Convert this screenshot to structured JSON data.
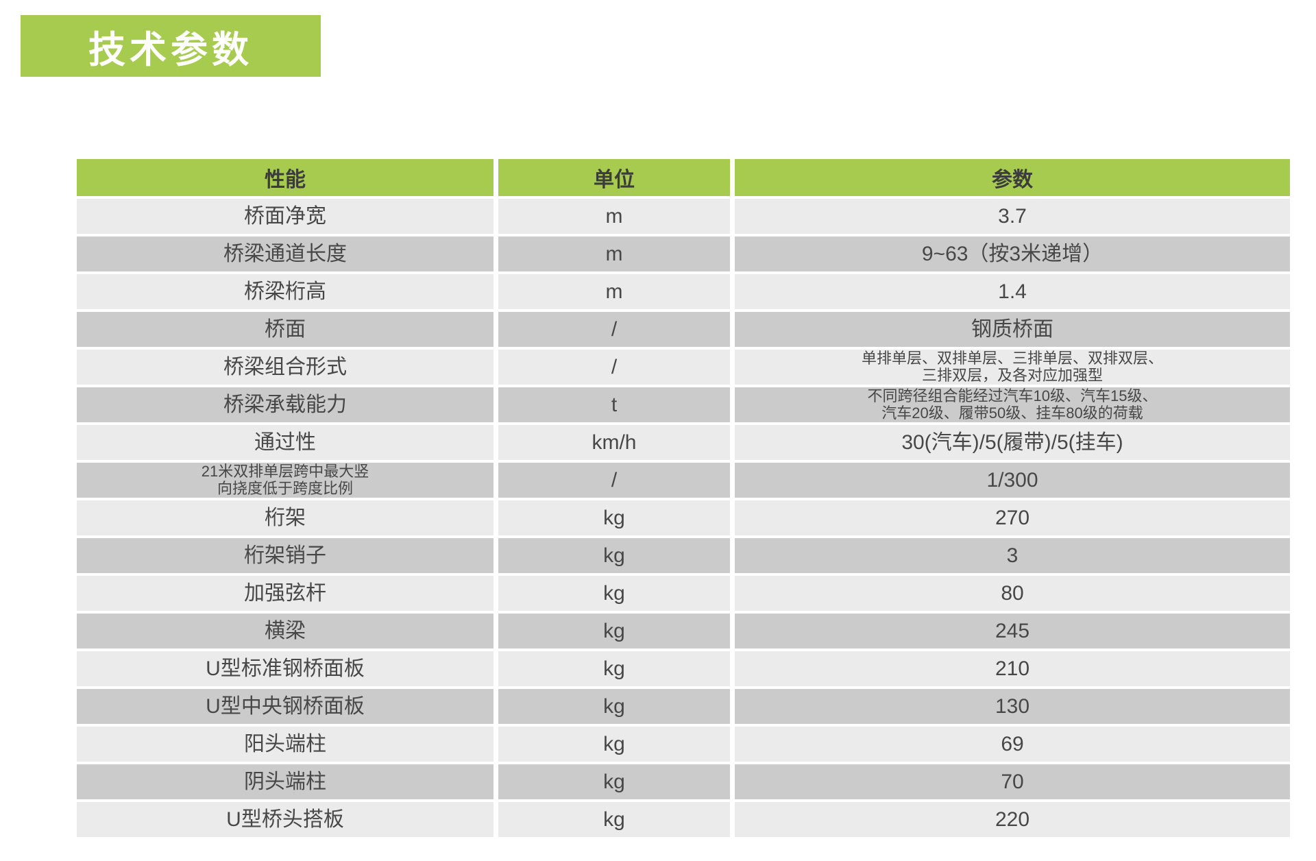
{
  "page": {
    "title": "技术参数"
  },
  "colors": {
    "accent_green": "#a6cb4f",
    "row_light": "#ebebeb",
    "row_dark": "#cbcbcb",
    "title_text": "#ffffff",
    "cell_text": "#474747"
  },
  "table": {
    "headers": [
      "性能",
      "单位",
      "参数"
    ],
    "rows": [
      {
        "performance": "桥面净宽",
        "unit": "m",
        "parameter": "3.7"
      },
      {
        "performance": "桥梁通道长度",
        "unit": "m",
        "parameter": "9~63（按3米递增）"
      },
      {
        "performance": "桥梁桁高",
        "unit": "m",
        "parameter": "1.4"
      },
      {
        "performance": "桥面",
        "unit": "/",
        "parameter": "钢质桥面"
      },
      {
        "performance": "桥梁组合形式",
        "unit": "/",
        "parameter": "单排单层、双排单层、三排单层、双排双层、\n三排双层，及各对应加强型"
      },
      {
        "performance": "桥梁承载能力",
        "unit": "t",
        "parameter": "不同跨径组合能经过汽车10级、汽车15级、\n汽车20级、履带50级、挂车80级的荷载"
      },
      {
        "performance": "通过性",
        "unit": "km/h",
        "parameter": "30(汽车)/5(履带)/5(挂车)"
      },
      {
        "performance": "21米双排单层跨中最大竖\n向挠度低于跨度比例",
        "unit": "/",
        "parameter": "1/300"
      },
      {
        "performance": "桁架",
        "unit": "kg",
        "parameter": "270"
      },
      {
        "performance": "桁架销子",
        "unit": "kg",
        "parameter": "3"
      },
      {
        "performance": "加强弦杆",
        "unit": "kg",
        "parameter": "80"
      },
      {
        "performance": "横梁",
        "unit": "kg",
        "parameter": "245"
      },
      {
        "performance": "U型标准钢桥面板",
        "unit": "kg",
        "parameter": "210"
      },
      {
        "performance": "U型中央钢桥面板",
        "unit": "kg",
        "parameter": "130"
      },
      {
        "performance": "阳头端柱",
        "unit": "kg",
        "parameter": "69"
      },
      {
        "performance": "阴头端柱",
        "unit": "kg",
        "parameter": "70"
      },
      {
        "performance": "U型桥头搭板",
        "unit": "kg",
        "parameter": "220"
      }
    ]
  }
}
